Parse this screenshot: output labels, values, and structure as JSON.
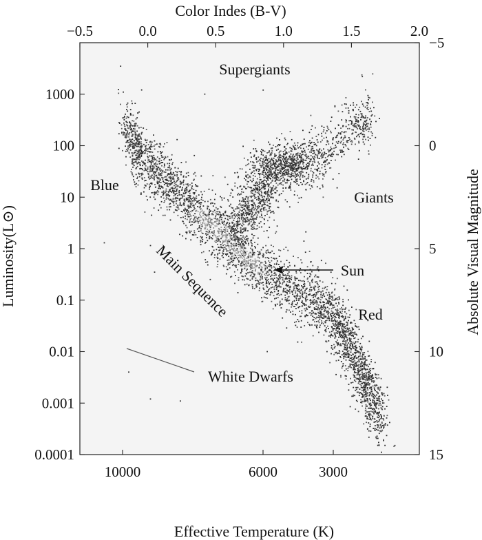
{
  "chart_data": {
    "type": "scatter",
    "title": "",
    "grid": false,
    "axes": {
      "top": {
        "label": "Color Indes (B-V)",
        "range": [
          -0.5,
          2.0
        ],
        "ticks": [
          {
            "value": -0.5,
            "label": "−0.5"
          },
          {
            "value": 0.0,
            "label": "0.0"
          },
          {
            "value": 0.5,
            "label": "0.5"
          },
          {
            "value": 1.0,
            "label": "1.0"
          },
          {
            "value": 1.5,
            "label": "1.5"
          },
          {
            "value": 2.0,
            "label": "2.0"
          }
        ]
      },
      "bottom": {
        "label": "Effective Temperature (K)",
        "ticks": [
          {
            "value": 10000,
            "label": "10000"
          },
          {
            "value": 6000,
            "label": "6000"
          },
          {
            "value": 3000,
            "label": "3000"
          }
        ]
      },
      "left": {
        "label": "Luminosity(L⊙)",
        "scale": "log",
        "range": [
          0.0001,
          10000
        ],
        "ticks": [
          {
            "value": 1000,
            "label": "1000"
          },
          {
            "value": 100,
            "label": "100"
          },
          {
            "value": 10,
            "label": "10"
          },
          {
            "value": 1,
            "label": "1"
          },
          {
            "value": 0.1,
            "label": "0.1"
          },
          {
            "value": 0.01,
            "label": "0.01"
          },
          {
            "value": 0.001,
            "label": "0.001"
          },
          {
            "value": 0.0001,
            "label": "0.0001"
          }
        ]
      },
      "right": {
        "label": "Absolute Visual Magnitude",
        "range": [
          -5,
          15
        ],
        "ticks": [
          {
            "value": -5,
            "label": "−5"
          },
          {
            "value": 0,
            "label": "0"
          },
          {
            "value": 5,
            "label": "5"
          },
          {
            "value": 10,
            "label": "10"
          },
          {
            "value": 15,
            "label": "15"
          }
        ]
      }
    },
    "annotations": [
      {
        "id": "supergiants",
        "text": "Supergiants",
        "bv": 0.75,
        "lum": 2500
      },
      {
        "id": "giants",
        "text": "Giants",
        "bv": 1.52,
        "lum": 11
      },
      {
        "id": "blue",
        "text": "Blue",
        "bv": -0.33,
        "lum": 20
      },
      {
        "id": "red",
        "text": "Red",
        "bv": 1.6,
        "lum": 0.12
      },
      {
        "id": "main-sequence",
        "text": "Main Sequence",
        "bv": 0.3,
        "lum": 0.3,
        "rotation": 45
      },
      {
        "id": "sun",
        "text": "Sun",
        "bv": 1.22,
        "lum": 1,
        "arrow_to": {
          "bv": 0.93,
          "lum": 1
        }
      },
      {
        "id": "white-dwarfs",
        "text": "White Dwarfs",
        "bv": 0.95,
        "lum": 0.0009,
        "line_from": {
          "bv": -0.12,
          "lum": 0.003
        },
        "line_to": {
          "bv": 0.36,
          "lum": 0.0012
        }
      }
    ],
    "series": [
      {
        "region": "main sequence",
        "ridge": [
          [
            -0.17,
            250
          ],
          [
            -0.05,
            60
          ],
          [
            0.1,
            25
          ],
          [
            0.25,
            12
          ],
          [
            0.4,
            4
          ],
          [
            0.55,
            2
          ],
          [
            0.65,
            1
          ],
          [
            0.8,
            0.45
          ],
          [
            1.0,
            0.2
          ],
          [
            1.2,
            0.1
          ],
          [
            1.35,
            0.06
          ],
          [
            1.45,
            0.02
          ],
          [
            1.55,
            0.006
          ],
          [
            1.62,
            0.002
          ],
          [
            1.72,
            0.0004
          ]
        ],
        "spread_dex": 0.22,
        "count": 3800
      },
      {
        "region": "subgiant branch",
        "ridge": [
          [
            0.62,
            2.5
          ],
          [
            0.72,
            5
          ],
          [
            0.8,
            8
          ],
          [
            0.88,
            15
          ],
          [
            0.95,
            25
          ]
        ],
        "spread_dex": 0.25,
        "count": 700
      },
      {
        "region": "red giant clump",
        "center": [
          1.02,
          40
        ],
        "spread": [
          0.13,
          0.2
        ],
        "count": 650
      },
      {
        "region": "red giant branch",
        "ridge": [
          [
            1.0,
            35
          ],
          [
            1.2,
            70
          ],
          [
            1.4,
            120
          ],
          [
            1.55,
            250
          ],
          [
            1.65,
            350
          ]
        ],
        "spread_dex": 0.2,
        "count": 500
      },
      {
        "region": "sparse field",
        "points": [
          [
            -0.2,
            3500
          ],
          [
            -0.18,
            1100
          ],
          [
            0.42,
            1000
          ],
          [
            0.85,
            1200
          ],
          [
            1.58,
            2200
          ],
          [
            1.55,
            350
          ],
          [
            -0.32,
            1.3
          ],
          [
            0.02,
            1.15
          ],
          [
            0.05,
            0.35
          ],
          [
            1.0,
            0.3
          ],
          [
            1.15,
            1.4
          ],
          [
            0.88,
            0.01
          ],
          [
            1.32,
            0.01
          ],
          [
            -0.14,
            0.004
          ],
          [
            0.24,
            0.0011
          ],
          [
            0.02,
            0.0012
          ],
          [
            1.82,
            0.00015
          ],
          [
            1.75,
            0.0004
          ]
        ],
        "count": 18
      }
    ]
  }
}
